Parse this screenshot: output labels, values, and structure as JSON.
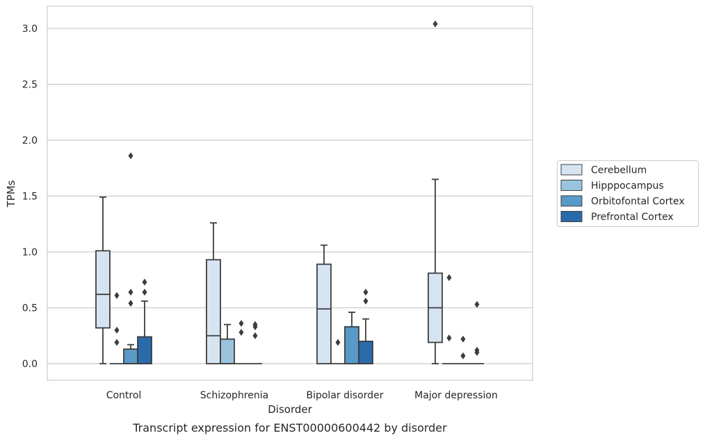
{
  "caption": "Transcript expression for ENST00000600442 by disorder",
  "chart_data": {
    "type": "box",
    "xlabel": "Disorder",
    "ylabel": "TPMs",
    "ylim": [
      -0.15,
      3.2
    ],
    "yticks": [
      "0.0",
      "0.5",
      "1.0",
      "1.5",
      "2.0",
      "2.5",
      "3.0"
    ],
    "grid": true,
    "legend_position": "right",
    "categories": [
      "Control",
      "Schizophrenia",
      "Bipolar disorder",
      "Major depression"
    ],
    "series": [
      {
        "name": "Cerebellum",
        "color": "#d6e4f2",
        "boxes": [
          {
            "q1": 0.32,
            "median": 0.62,
            "q3": 1.01,
            "whislo": 0.0,
            "whishi": 1.49,
            "fliers": []
          },
          {
            "q1": 0.0,
            "median": 0.25,
            "q3": 0.93,
            "whislo": 0.0,
            "whishi": 1.26,
            "fliers": []
          },
          {
            "q1": 0.0,
            "median": 0.49,
            "q3": 0.89,
            "whislo": 0.0,
            "whishi": 1.06,
            "fliers": []
          },
          {
            "q1": 0.19,
            "median": 0.5,
            "q3": 0.81,
            "whislo": 0.0,
            "whishi": 1.65,
            "fliers": [
              3.04
            ]
          }
        ]
      },
      {
        "name": "Hipppocampus",
        "color": "#9ac4de",
        "boxes": [
          {
            "q1": 0.0,
            "median": 0.0,
            "q3": 0.0,
            "whislo": 0.0,
            "whishi": 0.0,
            "fliers": [
              0.61,
              0.3,
              0.19
            ]
          },
          {
            "q1": 0.0,
            "median": 0.0,
            "q3": 0.22,
            "whislo": 0.0,
            "whishi": 0.35,
            "fliers": []
          },
          {
            "q1": 0.0,
            "median": 0.0,
            "q3": 0.0,
            "whislo": 0.0,
            "whishi": 0.0,
            "fliers": [
              0.19
            ]
          },
          {
            "q1": 0.0,
            "median": 0.0,
            "q3": 0.0,
            "whislo": 0.0,
            "whishi": 0.0,
            "fliers": [
              0.77,
              0.23
            ]
          }
        ]
      },
      {
        "name": "Orbitofontal Cortex",
        "color": "#5a9ac8",
        "boxes": [
          {
            "q1": 0.0,
            "median": 0.0,
            "q3": 0.13,
            "whislo": 0.0,
            "whishi": 0.17,
            "fliers": [
              1.86,
              0.64,
              0.54
            ]
          },
          {
            "q1": 0.0,
            "median": 0.0,
            "q3": 0.0,
            "whislo": 0.0,
            "whishi": 0.0,
            "fliers": [
              0.36,
              0.28
            ]
          },
          {
            "q1": 0.0,
            "median": 0.0,
            "q3": 0.33,
            "whislo": 0.0,
            "whishi": 0.46,
            "fliers": []
          },
          {
            "q1": 0.0,
            "median": 0.0,
            "q3": 0.0,
            "whislo": 0.0,
            "whishi": 0.0,
            "fliers": [
              0.22,
              0.07
            ]
          }
        ]
      },
      {
        "name": "Prefrontal Cortex",
        "color": "#2a6aab",
        "boxes": [
          {
            "q1": 0.0,
            "median": 0.0,
            "q3": 0.24,
            "whislo": 0.0,
            "whishi": 0.56,
            "fliers": [
              0.73,
              0.64
            ]
          },
          {
            "q1": 0.0,
            "median": 0.0,
            "q3": 0.0,
            "whislo": 0.0,
            "whishi": 0.0,
            "fliers": [
              0.35,
              0.33,
              0.25
            ]
          },
          {
            "q1": 0.0,
            "median": 0.0,
            "q3": 0.2,
            "whislo": 0.0,
            "whishi": 0.4,
            "fliers": [
              0.64,
              0.56
            ]
          },
          {
            "q1": 0.0,
            "median": 0.0,
            "q3": 0.0,
            "whislo": 0.0,
            "whishi": 0.0,
            "fliers": [
              0.53,
              0.12,
              0.1
            ]
          }
        ]
      }
    ]
  }
}
